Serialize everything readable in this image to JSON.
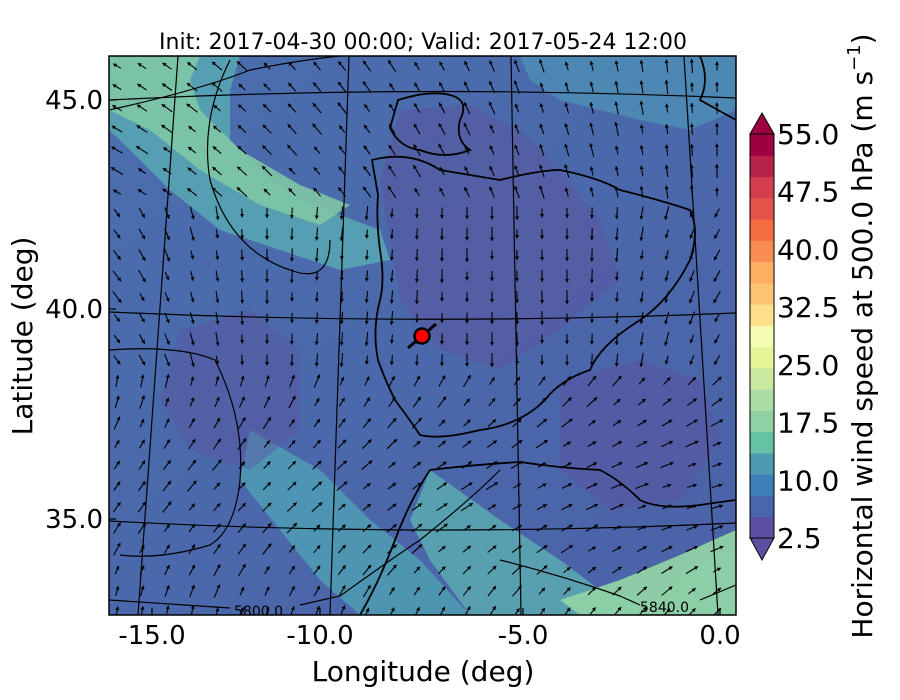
{
  "title": "Init: 2017-04-30 00:00; Valid: 2017-05-24 12:00",
  "xlabel": "Longitude (deg)",
  "ylabel": "Latitude (deg)",
  "x_ticks": [
    "-15.0",
    "-10.0",
    "-5.0",
    "0.0"
  ],
  "y_ticks": [
    "45.0",
    "40.0",
    "35.0"
  ],
  "colorbar": {
    "label": "Horizontal wind speed at 500.0 hPa (m s",
    "label_exp": "−1",
    "label_close": ")",
    "tick_labels": [
      "55.0",
      "47.5",
      "40.0",
      "32.5",
      "25.0",
      "17.5",
      "10.0",
      "2.5"
    ],
    "min": 2.5,
    "max": 55.0,
    "extend": "both",
    "colors": [
      "#5e4fa2",
      "#4a65ad",
      "#3d7fb8",
      "#4e99b2",
      "#66c2a5",
      "#8fd1a4",
      "#abdda4",
      "#cbe99e",
      "#e6f598",
      "#f5fbb0",
      "#fee08b",
      "#fdc272",
      "#fdae61",
      "#f88d52",
      "#f46d43",
      "#e25349",
      "#d53e4f",
      "#b5224a",
      "#9e0142"
    ]
  },
  "contour_labels": [
    "5800.0",
    "5840.0"
  ],
  "map": {
    "lon_range": [
      -16,
      0.3
    ],
    "lat_range": [
      32.6,
      46
    ],
    "highlight_marker_color": "#ff0000",
    "vector_color": "#000000"
  },
  "chart_data": {
    "type": "heatmap",
    "title": "Init: 2017-04-30 00:00; Valid: 2017-05-24 12:00",
    "xlabel": "Longitude (deg)",
    "ylabel": "Latitude (deg)",
    "xlim": [
      -16,
      0.3
    ],
    "ylim": [
      32.6,
      46
    ],
    "colorbar_range": [
      2.5,
      55.0
    ],
    "marker": {
      "lon": -7.7,
      "lat": 39.3
    },
    "contours": [
      5800.0,
      5840.0
    ]
  }
}
